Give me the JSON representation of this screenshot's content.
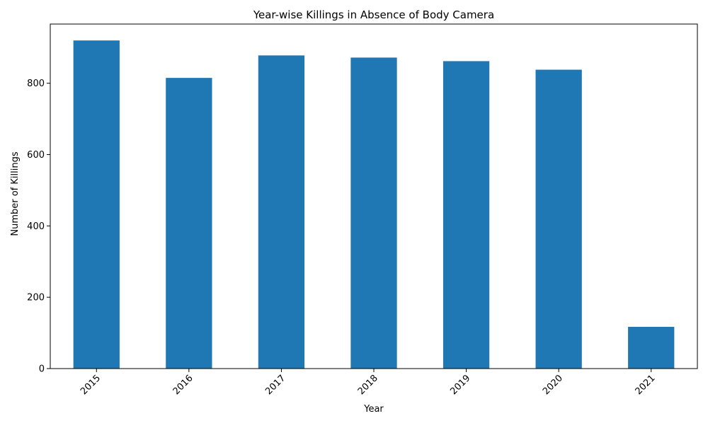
{
  "chart_data": {
    "type": "bar",
    "title": "Year-wise Killings in Absence of Body Camera",
    "xlabel": "Year",
    "ylabel": "Number of Killings",
    "categories": [
      "2015",
      "2016",
      "2017",
      "2018",
      "2019",
      "2020",
      "2021"
    ],
    "values": [
      920,
      815,
      878,
      872,
      862,
      838,
      117
    ],
    "ylim": [
      0,
      966
    ],
    "yticks": [
      0,
      200,
      400,
      600,
      800
    ],
    "grid": false,
    "legend": "none",
    "bar_color": "#1f77b4"
  }
}
